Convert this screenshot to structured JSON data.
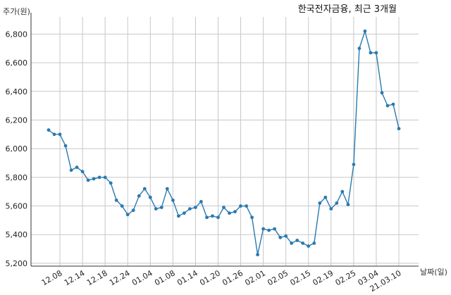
{
  "colors": {
    "line": "#2a7ab0",
    "grid": "#c8c8c8",
    "axis": "#333333"
  },
  "chart_data": {
    "type": "line",
    "title": "한국전자금융, 최근 3개월",
    "ylabel": "주가(원)",
    "xlabel": "날짜(일)",
    "ylim": [
      5180,
      6920
    ],
    "yticks": [
      5200,
      5400,
      5600,
      5800,
      6000,
      6200,
      6400,
      6600,
      6800
    ],
    "ytick_labels": [
      "5,200",
      "5,400",
      "5,600",
      "5,800",
      "6,000",
      "6,200",
      "6,400",
      "6,600",
      "6,800"
    ],
    "xtick_labels": [
      "12.08",
      "12.14",
      "12.18",
      "12.24",
      "01.04",
      "01.08",
      "01.14",
      "01.20",
      "01.26",
      "02.01",
      "02.05",
      "02.15",
      "02.19",
      "02.25",
      "03.04",
      "21.03.10"
    ],
    "xtick_index": [
      2,
      6,
      10,
      14,
      18,
      22,
      26,
      30,
      34,
      38,
      42,
      46,
      50,
      54,
      58,
      62
    ],
    "grid": true,
    "series": [
      {
        "values": [
          6130,
          6100,
          6100,
          6020,
          5850,
          5870,
          5840,
          5780,
          5790,
          5800,
          5800,
          5760,
          5640,
          5600,
          5540,
          5570,
          5670,
          5720,
          5660,
          5580,
          5590,
          5720,
          5640,
          5530,
          5550,
          5580,
          5590,
          5630,
          5520,
          5530,
          5520,
          5590,
          5550,
          5560,
          5600,
          5600,
          5520,
          5260,
          5440,
          5430,
          5440,
          5380,
          5390,
          5340,
          5360,
          5340,
          5320,
          5340,
          5620,
          5660,
          5580,
          5620,
          5700,
          5610,
          5890,
          6700,
          6820,
          6670,
          6670,
          6390,
          6300,
          6310,
          6140
        ]
      }
    ]
  }
}
